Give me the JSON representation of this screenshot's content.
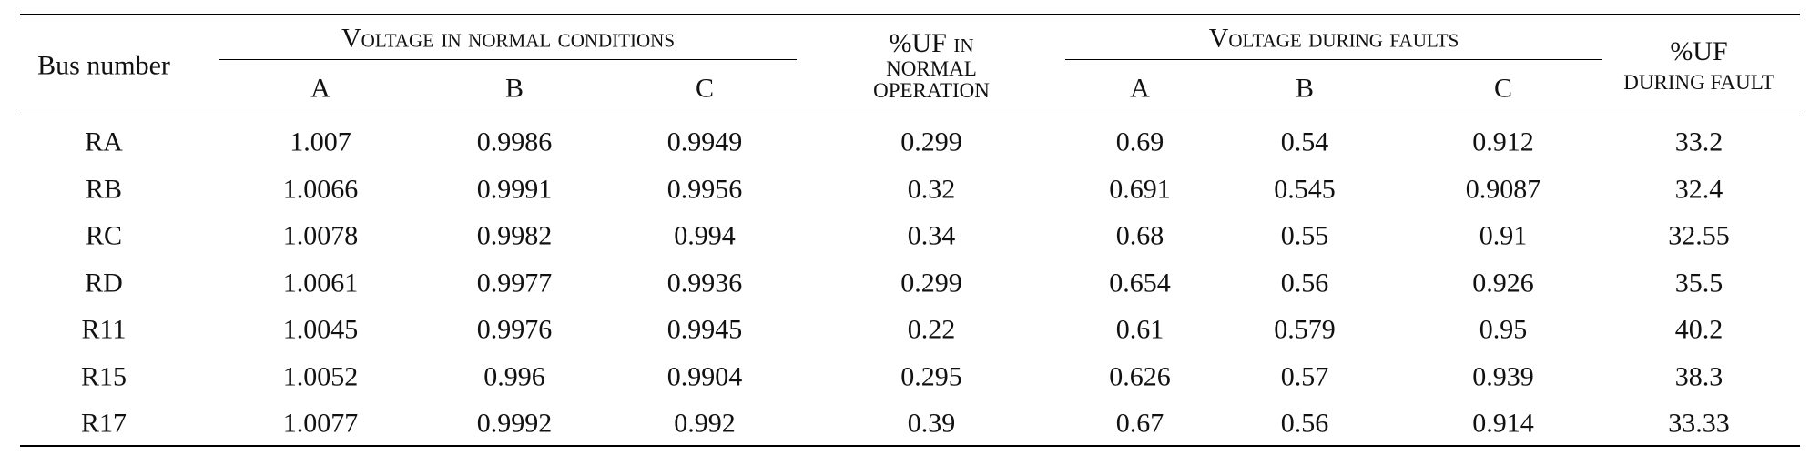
{
  "table": {
    "headers": {
      "bus": "Bus number",
      "voltage_normal": "Voltage in normal conditions",
      "uf_normal_line1": "%UF in",
      "uf_normal_line2": "normal",
      "uf_normal_line3": "operation",
      "voltage_fault": "Voltage during faults",
      "uf_fault_line1": "%UF",
      "uf_fault_line2": "during fault",
      "phases_normal": [
        "A",
        "B",
        "C"
      ],
      "phases_fault": [
        "A",
        "B",
        "C"
      ]
    },
    "rows": [
      {
        "bus": "RA",
        "va": "1.007",
        "vb": "0.9986",
        "vc": "0.9949",
        "uf_normal": "0.299",
        "fa": "0.69",
        "fb": "0.54",
        "fc": "0.912",
        "uf_fault": "33.2"
      },
      {
        "bus": "RB",
        "va": "1.0066",
        "vb": "0.9991",
        "vc": "0.9956",
        "uf_normal": "0.32",
        "fa": "0.691",
        "fb": "0.545",
        "fc": "0.9087",
        "uf_fault": "32.4"
      },
      {
        "bus": "RC",
        "va": "1.0078",
        "vb": "0.9982",
        "vc": "0.994",
        "uf_normal": "0.34",
        "fa": "0.68",
        "fb": "0.55",
        "fc": "0.91",
        "uf_fault": "32.55"
      },
      {
        "bus": "RD",
        "va": "1.0061",
        "vb": "0.9977",
        "vc": "0.9936",
        "uf_normal": "0.299",
        "fa": "0.654",
        "fb": "0.56",
        "fc": "0.926",
        "uf_fault": "35.5"
      },
      {
        "bus": "R11",
        "va": "1.0045",
        "vb": "0.9976",
        "vc": "0.9945",
        "uf_normal": "0.22",
        "fa": "0.61",
        "fb": "0.579",
        "fc": "0.95",
        "uf_fault": "40.2"
      },
      {
        "bus": "R15",
        "va": "1.0052",
        "vb": "0.996",
        "vc": "0.9904",
        "uf_normal": "0.295",
        "fa": "0.626",
        "fb": "0.57",
        "fc": "0.939",
        "uf_fault": "38.3"
      },
      {
        "bus": "R17",
        "va": "1.0077",
        "vb": "0.9992",
        "vc": "0.992",
        "uf_normal": "0.39",
        "fa": "0.67",
        "fb": "0.56",
        "fc": "0.914",
        "uf_fault": "33.33"
      }
    ]
  }
}
